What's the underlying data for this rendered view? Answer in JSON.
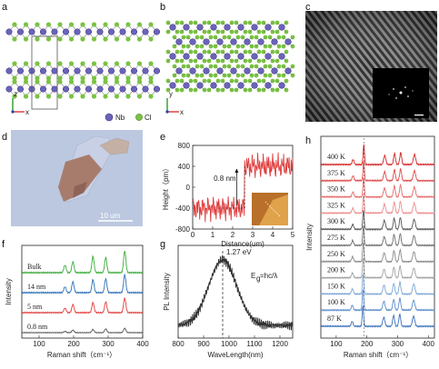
{
  "panel_labels": [
    "a",
    "b",
    "c",
    "d",
    "e",
    "f",
    "g",
    "h"
  ],
  "legend": {
    "nb": "Nb",
    "cl": "Cl"
  },
  "axes_glyphs": {
    "x": "x",
    "y": "y",
    "z": "z"
  },
  "colors": {
    "nb": "#6a63b8",
    "cl": "#7ac243",
    "red": "#e03a3a",
    "green": "#3aab3a",
    "blue": "#2b6fb8",
    "grey": "#555555"
  },
  "panel_d": {
    "scale_bar": "10 um"
  },
  "chart_data": [
    {
      "panel": "e",
      "type": "line",
      "ylabel": "Height（pm）",
      "xlabel": "Distance(um)",
      "xlim": [
        0,
        5
      ],
      "ylim": [
        -800,
        800
      ],
      "xticks": [
        "0",
        "1",
        "2",
        "3",
        "4",
        "5"
      ],
      "yticks": [
        "800",
        "400",
        "0",
        "-400",
        "-800"
      ],
      "annotation": "0.8 nm",
      "step_x": 2.6,
      "levels": [
        -400,
        400
      ]
    },
    {
      "panel": "f",
      "type": "line",
      "ylabel": "Intensity",
      "xlabel": "Raman shift（cm⁻¹）",
      "xlim": [
        50,
        400
      ],
      "xticks": [
        "100",
        "200",
        "300",
        "400"
      ],
      "peaks": [
        175,
        198,
        256,
        293,
        348
      ],
      "series": [
        {
          "name": "Bulk",
          "color": "#3aab3a",
          "heights": [
            0.35,
            0.5,
            0.75,
            0.7,
            1.0
          ]
        },
        {
          "name": "14 nm",
          "color": "#2b6fb8",
          "heights": [
            0.3,
            0.55,
            0.65,
            0.7,
            0.9
          ]
        },
        {
          "name": "5 nm",
          "color": "#e03a3a",
          "heights": [
            0.25,
            0.45,
            0.55,
            0.6,
            0.8
          ]
        },
        {
          "name": "0.8 nm",
          "color": "#555555",
          "heights": [
            0.1,
            0.2,
            0.25,
            0.3,
            0.35
          ]
        }
      ]
    },
    {
      "panel": "g",
      "type": "line",
      "ylabel": "PL Intensity",
      "xlabel": "WaveLength(nm)",
      "xlim": [
        800,
        1250
      ],
      "xticks": [
        "800",
        "900",
        "1000",
        "1100",
        "1200"
      ],
      "peak_x": 975,
      "peak_label": "1.27 eV",
      "formula": "E",
      "formula_sub": "g",
      "formula_rest": "=hc/λ"
    },
    {
      "panel": "h",
      "type": "line",
      "ylabel": "Intensity",
      "xlabel": "Raman shift（cm⁻¹）",
      "xlim": [
        50,
        420
      ],
      "xticks": [
        "100",
        "200",
        "300",
        "400"
      ],
      "peaks": [
        155,
        190,
        258,
        290,
        310,
        355
      ],
      "series": [
        {
          "name": "400 K",
          "color": "#d42020"
        },
        {
          "name": "375 K",
          "color": "#e04848"
        },
        {
          "name": "350 K",
          "color": "#e86868"
        },
        {
          "name": "325 K",
          "color": "#ee8c8c"
        },
        {
          "name": "300 K",
          "color": "#555555"
        },
        {
          "name": "275 K",
          "color": "#6e6e6e"
        },
        {
          "name": "250 K",
          "color": "#888888"
        },
        {
          "name": "200 K",
          "color": "#a0a0a0"
        },
        {
          "name": "150 K",
          "color": "#7aa6d8"
        },
        {
          "name": "100 K",
          "color": "#5a8ccc"
        },
        {
          "name": "87 K",
          "color": "#3a70bc"
        }
      ]
    }
  ]
}
